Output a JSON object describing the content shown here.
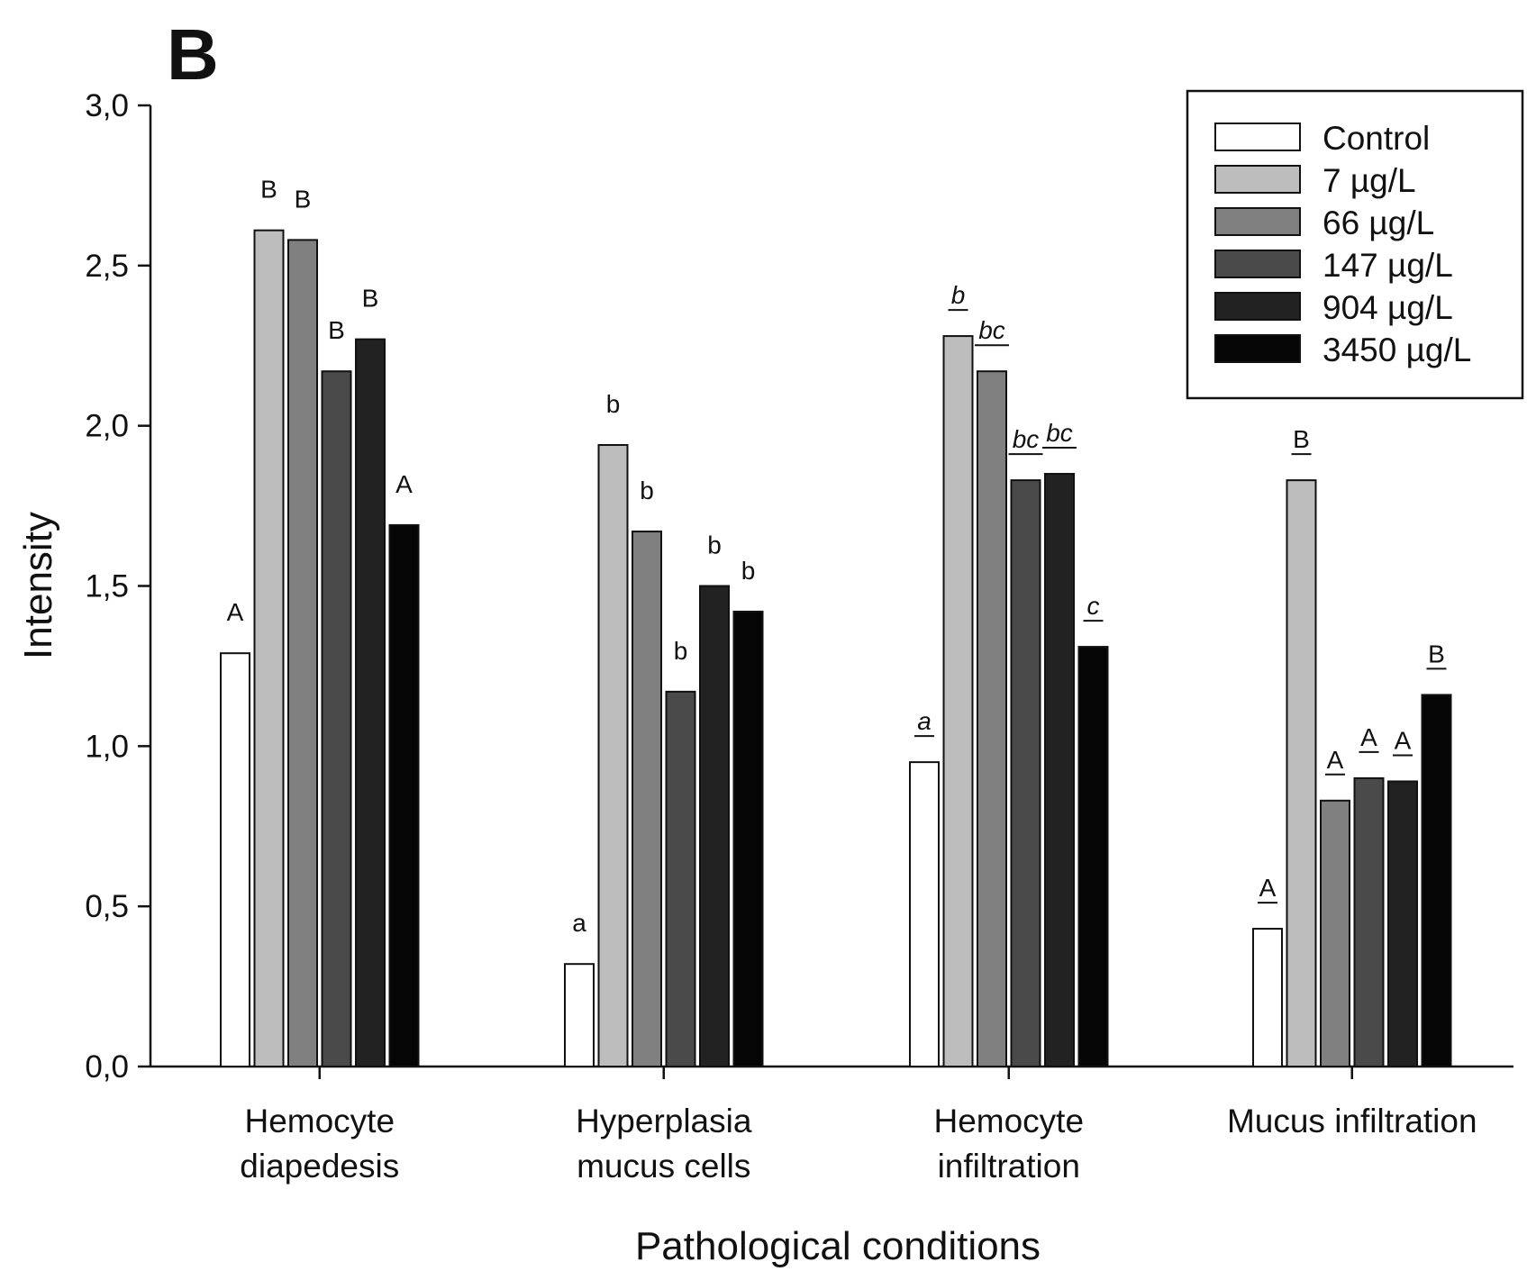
{
  "panel_label": "B",
  "chart_data": {
    "type": "bar",
    "title": "",
    "xlabel": "Pathological conditions",
    "ylabel": "Intensity",
    "ylim": [
      0,
      3
    ],
    "yticks": [
      "0,0",
      "0,5",
      "1,0",
      "1,5",
      "2,0",
      "2,5",
      "3,0"
    ],
    "categories": [
      [
        "Hemocyte",
        "diapedesis"
      ],
      [
        "Hyperplasia",
        "mucus cells"
      ],
      [
        "Hemocyte",
        "infiltration"
      ],
      [
        "Mucus infiltration"
      ]
    ],
    "legend_position": "top-right",
    "series": [
      {
        "name": "Control",
        "color": "#ffffff",
        "values": [
          1.29,
          0.32,
          0.95,
          0.43
        ]
      },
      {
        "name": "7 µg/L",
        "color": "#bdbdbd",
        "values": [
          2.61,
          1.94,
          2.28,
          1.83
        ]
      },
      {
        "name": "66 µg/L",
        "color": "#808080",
        "values": [
          2.58,
          1.67,
          2.17,
          0.83
        ]
      },
      {
        "name": "147 µg/L",
        "color": "#4a4a4a",
        "values": [
          2.17,
          1.17,
          1.83,
          0.9
        ]
      },
      {
        "name": "904 µg/L",
        "color": "#222222",
        "values": [
          2.27,
          1.5,
          1.85,
          0.89
        ]
      },
      {
        "name": "3450 µg/L",
        "color": "#050505",
        "values": [
          1.69,
          1.42,
          1.31,
          1.16
        ]
      }
    ],
    "significance_letters": [
      [
        "A",
        "B",
        "B",
        "B",
        "B",
        "A"
      ],
      [
        "a",
        "b",
        "b",
        "b",
        "b",
        "b"
      ],
      [
        "a",
        "b",
        "bc",
        "bc",
        "bc",
        "c"
      ],
      [
        "A",
        "B",
        "A",
        "A",
        "A",
        "B"
      ]
    ],
    "significance_style": [
      "plain",
      "plain",
      "italic-underlined",
      "underlined"
    ]
  }
}
